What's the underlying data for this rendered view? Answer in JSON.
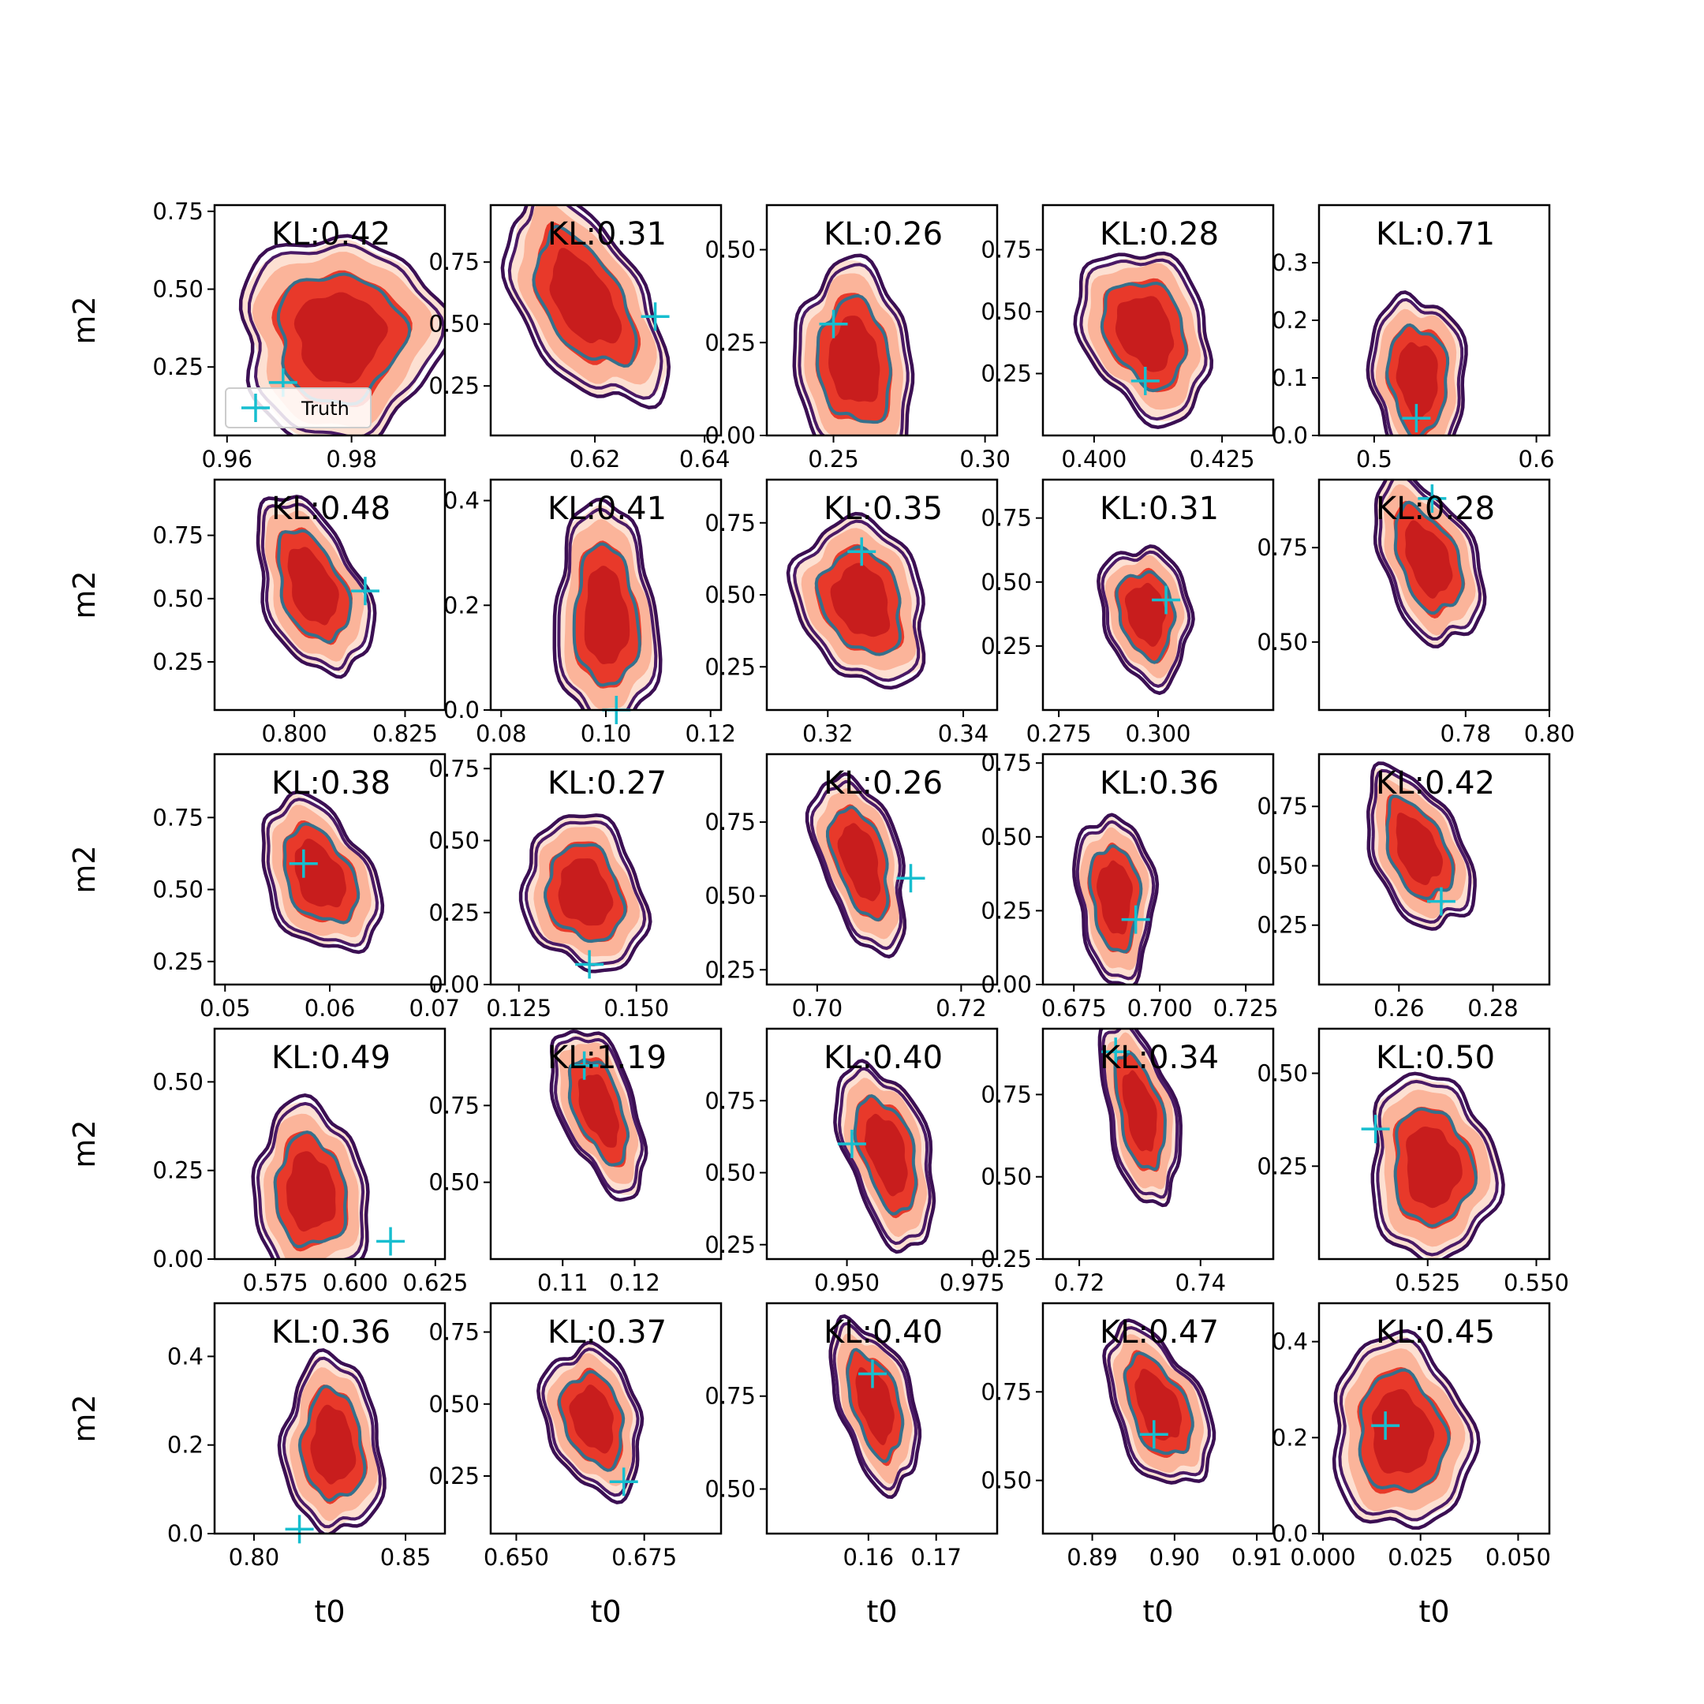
{
  "chart_data": {
    "type": "contour-grid",
    "rows": 5,
    "cols": 5,
    "xlabel": "t0",
    "ylabel": "m2",
    "truth_color": "#17becf",
    "colors": {
      "fill_outer": "#fde0d2",
      "fill_mid": "#fbb49a",
      "fill_inner": "#e8392a",
      "fill_core": "#c81d1d",
      "contour_outer": "#3b0f53",
      "contour_mid": "#4a1a66",
      "contour_inner": "#35708c"
    },
    "legend": {
      "label": "Truth",
      "panel": 0
    },
    "panels": [
      {
        "kl": "KL:0.42",
        "xlim": [
          0.958,
          0.995
        ],
        "ylim": [
          0.03,
          0.77
        ],
        "xticks": [
          0.96,
          0.98
        ],
        "xtick_labels": [
          "0.96",
          "0.98"
        ],
        "yticks": [
          0.25,
          0.5,
          0.75
        ],
        "ytick_labels": [
          "0.25",
          "0.50",
          "0.75"
        ],
        "truth": [
          0.969,
          0.2
        ],
        "center": [
          0.978,
          0.35
        ],
        "spread": [
          0.01,
          0.2
        ],
        "tilt": 0.0
      },
      {
        "kl": "KL:0.31",
        "xlim": [
          0.601,
          0.643
        ],
        "ylim": [
          0.05,
          0.98
        ],
        "xticks": [
          0.62,
          0.64
        ],
        "xtick_labels": [
          "0.62",
          "0.64"
        ],
        "yticks": [
          0.25,
          0.5,
          0.75
        ],
        "ytick_labels": [
          "0.25",
          "0.50",
          "0.75"
        ],
        "truth": [
          0.631,
          0.53
        ],
        "center": [
          0.618,
          0.6
        ],
        "spread": [
          0.009,
          0.22
        ],
        "tilt": -0.7
      },
      {
        "kl": "KL:0.26",
        "xlim": [
          0.228,
          0.304
        ],
        "ylim": [
          0.0,
          0.62
        ],
        "xticks": [
          0.25,
          0.3
        ],
        "xtick_labels": [
          "0.25",
          "0.30"
        ],
        "yticks": [
          0.0,
          0.25,
          0.5
        ],
        "ytick_labels": [
          "0.00",
          "0.25",
          "0.50"
        ],
        "truth": [
          0.25,
          0.3
        ],
        "center": [
          0.257,
          0.2
        ],
        "spread": [
          0.012,
          0.16
        ],
        "tilt": -0.15
      },
      {
        "kl": "KL:0.28",
        "xlim": [
          0.39,
          0.435
        ],
        "ylim": [
          0.0,
          0.93
        ],
        "xticks": [
          0.4,
          0.425
        ],
        "xtick_labels": [
          "0.400",
          "0.425"
        ],
        "yticks": [
          0.25,
          0.5,
          0.75
        ],
        "ytick_labels": [
          "0.25",
          "0.50",
          "0.75"
        ],
        "truth": [
          0.41,
          0.22
        ],
        "center": [
          0.41,
          0.42
        ],
        "spread": [
          0.008,
          0.2
        ],
        "tilt": -0.3
      },
      {
        "kl": "KL:0.71",
        "xlim": [
          0.466,
          0.608
        ],
        "ylim": [
          0.0,
          0.4
        ],
        "xticks": [
          0.5,
          0.6
        ],
        "xtick_labels": [
          "0.5",
          "0.6"
        ],
        "yticks": [
          0.0,
          0.1,
          0.2,
          0.3
        ],
        "ytick_labels": [
          "0.0",
          "0.1",
          "0.2",
          "0.3"
        ],
        "truth": [
          0.526,
          0.03
        ],
        "center": [
          0.527,
          0.1
        ],
        "spread": [
          0.018,
          0.09
        ],
        "tilt": -0.1
      },
      {
        "kl": "KL:0.48",
        "xlim": [
          0.782,
          0.834
        ],
        "ylim": [
          0.06,
          0.97
        ],
        "xticks": [
          0.8,
          0.825
        ],
        "xtick_labels": [
          "0.800",
          "0.825"
        ],
        "yticks": [
          0.25,
          0.5,
          0.75
        ],
        "ytick_labels": [
          "0.25",
          "0.50",
          "0.75"
        ],
        "truth": [
          0.816,
          0.53
        ],
        "center": [
          0.804,
          0.55
        ],
        "spread": [
          0.008,
          0.19
        ],
        "tilt": -0.55
      },
      {
        "kl": "KL:0.41",
        "xlim": [
          0.078,
          0.122
        ],
        "ylim": [
          0.0,
          0.44
        ],
        "xticks": [
          0.08,
          0.1,
          0.12
        ],
        "xtick_labels": [
          "0.08",
          "0.10",
          "0.12"
        ],
        "yticks": [
          0.0,
          0.2,
          0.4
        ],
        "ytick_labels": [
          "0.0",
          "0.2",
          "0.4"
        ],
        "truth": [
          0.102,
          0.0
        ],
        "center": [
          0.1,
          0.18
        ],
        "spread": [
          0.006,
          0.13
        ],
        "tilt": -0.1
      },
      {
        "kl": "KL:0.35",
        "xlim": [
          0.311,
          0.345
        ],
        "ylim": [
          0.1,
          0.9
        ],
        "xticks": [
          0.32,
          0.34
        ],
        "xtick_labels": [
          "0.32",
          "0.34"
        ],
        "yticks": [
          0.25,
          0.5,
          0.75
        ],
        "ytick_labels": [
          "0.25",
          "0.50",
          "0.75"
        ],
        "truth": [
          0.325,
          0.65
        ],
        "center": [
          0.325,
          0.48
        ],
        "spread": [
          0.006,
          0.17
        ],
        "tilt": -0.25
      },
      {
        "kl": "KL:0.31",
        "xlim": [
          0.271,
          0.329
        ],
        "ylim": [
          0.0,
          0.9
        ],
        "xticks": [
          0.275,
          0.3
        ],
        "xtick_labels": [
          "0.275",
          "0.300"
        ],
        "yticks": [
          0.25,
          0.5,
          0.75
        ],
        "ytick_labels": [
          "0.25",
          "0.50",
          "0.75"
        ],
        "truth": [
          0.302,
          0.43
        ],
        "center": [
          0.297,
          0.38
        ],
        "spread": [
          0.007,
          0.16
        ],
        "tilt": -0.2
      },
      {
        "kl": "KL:0.28",
        "xlim": [
          0.745,
          0.8
        ],
        "ylim": [
          0.32,
          0.93
        ],
        "xticks": [
          0.78,
          0.8
        ],
        "xtick_labels": [
          "0.78",
          "0.80"
        ],
        "yticks": [
          0.5,
          0.75
        ],
        "ytick_labels": [
          "0.50",
          "0.75"
        ],
        "truth": [
          0.772,
          0.88
        ],
        "center": [
          0.771,
          0.72
        ],
        "spread": [
          0.008,
          0.12
        ],
        "tilt": -0.55
      },
      {
        "kl": "KL:0.38",
        "xlim": [
          0.049,
          0.071
        ],
        "ylim": [
          0.17,
          0.97
        ],
        "xticks": [
          0.05,
          0.06,
          0.07
        ],
        "xtick_labels": [
          "0.05",
          "0.06",
          "0.07"
        ],
        "yticks": [
          0.25,
          0.5,
          0.75
        ],
        "ytick_labels": [
          "0.25",
          "0.50",
          "0.75"
        ],
        "truth": [
          0.0575,
          0.59
        ],
        "center": [
          0.059,
          0.55
        ],
        "spread": [
          0.0035,
          0.15
        ],
        "tilt": -0.45
      },
      {
        "kl": "KL:0.27",
        "xlim": [
          0.119,
          0.168
        ],
        "ylim": [
          0.0,
          0.8
        ],
        "xticks": [
          0.125,
          0.15
        ],
        "xtick_labels": [
          "0.125",
          "0.150"
        ],
        "yticks": [
          0.0,
          0.25,
          0.5,
          0.75
        ],
        "ytick_labels": [
          "0.00",
          "0.25",
          "0.50",
          "0.75"
        ],
        "truth": [
          0.14,
          0.07
        ],
        "center": [
          0.139,
          0.32
        ],
        "spread": [
          0.008,
          0.16
        ],
        "tilt": -0.2
      },
      {
        "kl": "KL:0.26",
        "xlim": [
          0.693,
          0.725
        ],
        "ylim": [
          0.2,
          0.98
        ],
        "xticks": [
          0.7,
          0.72
        ],
        "xtick_labels": [
          "0.70",
          "0.72"
        ],
        "yticks": [
          0.25,
          0.5,
          0.75
        ],
        "ytick_labels": [
          "0.25",
          "0.50",
          "0.75"
        ],
        "truth": [
          0.713,
          0.56
        ],
        "center": [
          0.706,
          0.62
        ],
        "spread": [
          0.004,
          0.16
        ],
        "tilt": -0.6
      },
      {
        "kl": "KL:0.36",
        "xlim": [
          0.666,
          0.733
        ],
        "ylim": [
          0.0,
          0.78
        ],
        "xticks": [
          0.675,
          0.7,
          0.725
        ],
        "xtick_labels": [
          "0.675",
          "0.700",
          "0.725"
        ],
        "yticks": [
          0.0,
          0.25,
          0.5,
          0.75
        ],
        "ytick_labels": [
          "0.00",
          "0.25",
          "0.50",
          "0.75"
        ],
        "truth": [
          0.693,
          0.22
        ],
        "center": [
          0.687,
          0.3
        ],
        "spread": [
          0.007,
          0.17
        ],
        "tilt": -0.15
      },
      {
        "kl": "KL:0.42",
        "xlim": [
          0.243,
          0.292
        ],
        "ylim": [
          0.0,
          0.97
        ],
        "xticks": [
          0.26,
          0.28
        ],
        "xtick_labels": [
          "0.26",
          "0.28"
        ],
        "yticks": [
          0.25,
          0.5,
          0.75
        ],
        "ytick_labels": [
          "0.25",
          "0.50",
          "0.75"
        ],
        "truth": [
          0.269,
          0.35
        ],
        "center": [
          0.264,
          0.57
        ],
        "spread": [
          0.007,
          0.18
        ],
        "tilt": -0.55
      },
      {
        "kl": "KL:0.49",
        "xlim": [
          0.556,
          0.628
        ],
        "ylim": [
          0.0,
          0.65
        ],
        "xticks": [
          0.575,
          0.6,
          0.625
        ],
        "xtick_labels": [
          "0.575",
          "0.600",
          "0.625"
        ],
        "yticks": [
          0.0,
          0.25,
          0.5
        ],
        "ytick_labels": [
          "0.00",
          "0.25",
          "0.50"
        ],
        "truth": [
          0.611,
          0.05
        ],
        "center": [
          0.586,
          0.19
        ],
        "spread": [
          0.011,
          0.15
        ],
        "tilt": -0.1
      },
      {
        "kl": "KL:1.19",
        "xlim": [
          0.1,
          0.132
        ],
        "ylim": [
          0.25,
          1.0
        ],
        "xticks": [
          0.11,
          0.12
        ],
        "xtick_labels": [
          "0.11",
          "0.12"
        ],
        "yticks": [
          0.5,
          0.75
        ],
        "ytick_labels": [
          "0.50",
          "0.75"
        ],
        "truth": [
          0.113,
          0.88
        ],
        "center": [
          0.115,
          0.74
        ],
        "spread": [
          0.004,
          0.14
        ],
        "tilt": -0.7
      },
      {
        "kl": "KL:0.40",
        "xlim": [
          0.934,
          0.98
        ],
        "ylim": [
          0.2,
          1.0
        ],
        "xticks": [
          0.95,
          0.975
        ],
        "xtick_labels": [
          "0.950",
          "0.975"
        ],
        "yticks": [
          0.25,
          0.5,
          0.75
        ],
        "ytick_labels": [
          "0.25",
          "0.50",
          "0.75"
        ],
        "truth": [
          0.951,
          0.6
        ],
        "center": [
          0.958,
          0.57
        ],
        "spread": [
          0.006,
          0.17
        ],
        "tilt": -0.6
      },
      {
        "kl": "KL:0.34",
        "xlim": [
          0.714,
          0.752
        ],
        "ylim": [
          0.25,
          0.95
        ],
        "xticks": [
          0.72,
          0.74
        ],
        "xtick_labels": [
          "0.72",
          "0.74"
        ],
        "yticks": [
          0.25,
          0.5,
          0.75
        ],
        "ytick_labels": [
          "0.25",
          "0.50",
          "0.75"
        ],
        "truth": [
          0.726,
          0.88
        ],
        "center": [
          0.73,
          0.7
        ],
        "spread": [
          0.004,
          0.15
        ],
        "tilt": -0.6
      },
      {
        "kl": "KL:0.50",
        "xlim": [
          0.5,
          0.553
        ],
        "ylim": [
          0.0,
          0.62
        ],
        "xticks": [
          0.525,
          0.55
        ],
        "xtick_labels": [
          "0.525",
          "0.550"
        ],
        "yticks": [
          0.25,
          0.5
        ],
        "ytick_labels": [
          "0.25",
          "0.50"
        ],
        "truth": [
          0.513,
          0.35
        ],
        "center": [
          0.526,
          0.25
        ],
        "spread": [
          0.009,
          0.15
        ],
        "tilt": -0.1
      },
      {
        "kl": "KL:0.36",
        "xlim": [
          0.787,
          0.863
        ],
        "ylim": [
          0.0,
          0.52
        ],
        "xticks": [
          0.8,
          0.85
        ],
        "xtick_labels": [
          "0.80",
          "0.85"
        ],
        "yticks": [
          0.0,
          0.2,
          0.4
        ],
        "ytick_labels": [
          "0.0",
          "0.2",
          "0.4"
        ],
        "truth": [
          0.815,
          0.01
        ],
        "center": [
          0.826,
          0.2
        ],
        "spread": [
          0.01,
          0.12
        ],
        "tilt": -0.1
      },
      {
        "kl": "KL:0.37",
        "xlim": [
          0.645,
          0.69
        ],
        "ylim": [
          0.05,
          0.85
        ],
        "xticks": [
          0.65,
          0.675
        ],
        "xtick_labels": [
          "0.650",
          "0.675"
        ],
        "yticks": [
          0.25,
          0.5,
          0.75
        ],
        "ytick_labels": [
          "0.25",
          "0.50",
          "0.75"
        ],
        "truth": [
          0.671,
          0.23
        ],
        "center": [
          0.665,
          0.45
        ],
        "spread": [
          0.006,
          0.15
        ],
        "tilt": -0.3
      },
      {
        "kl": "KL:0.40",
        "xlim": [
          0.145,
          0.179
        ],
        "ylim": [
          0.38,
          1.0
        ],
        "xticks": [
          0.16,
          0.17
        ],
        "xtick_labels": [
          "0.16",
          "0.17"
        ],
        "yticks": [
          0.5,
          0.75
        ],
        "ytick_labels": [
          "0.50",
          "0.75"
        ],
        "truth": [
          0.1606,
          0.81
        ],
        "center": [
          0.161,
          0.73
        ],
        "spread": [
          0.004,
          0.12
        ],
        "tilt": -0.6
      },
      {
        "kl": "KL:0.47",
        "xlim": [
          0.884,
          0.912
        ],
        "ylim": [
          0.35,
          1.0
        ],
        "xticks": [
          0.89,
          0.9,
          0.91
        ],
        "xtick_labels": [
          "0.89",
          "0.90",
          "0.91"
        ],
        "yticks": [
          0.5,
          0.75
        ],
        "ytick_labels": [
          "0.50",
          "0.75"
        ],
        "truth": [
          0.8975,
          0.63
        ],
        "center": [
          0.898,
          0.71
        ],
        "spread": [
          0.004,
          0.12
        ],
        "tilt": -0.6
      },
      {
        "kl": "KL:0.45",
        "xlim": [
          -0.001,
          0.058
        ],
        "ylim": [
          0.0,
          0.48
        ],
        "xticks": [
          0.0,
          0.025,
          0.05
        ],
        "xtick_labels": [
          "0.000",
          "0.025",
          "0.050"
        ],
        "yticks": [
          0.0,
          0.2,
          0.4
        ],
        "ytick_labels": [
          "0.0",
          "0.2",
          "0.4"
        ],
        "truth": [
          0.016,
          0.225
        ],
        "center": [
          0.02,
          0.21
        ],
        "spread": [
          0.011,
          0.12
        ],
        "tilt": -0.1
      }
    ]
  }
}
